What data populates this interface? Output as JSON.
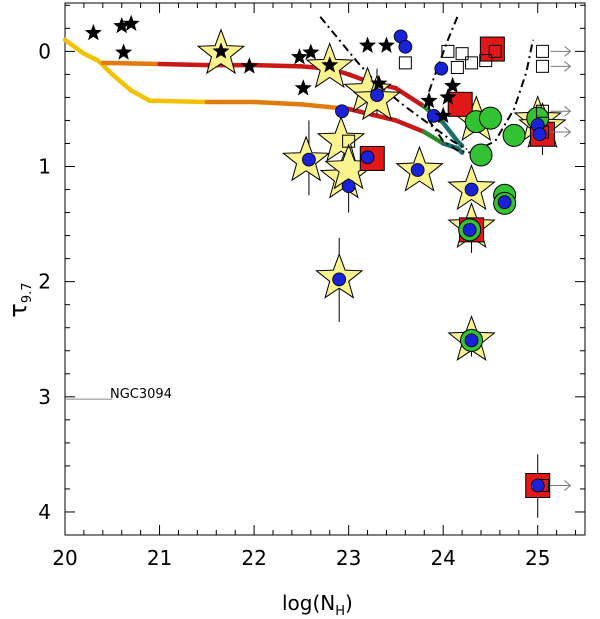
{
  "chart_data": {
    "type": "scatter",
    "title": "",
    "xlabel": "log(N",
    "xlabel_sub": "H",
    "xlabel_close": ")",
    "ylabel": "τ",
    "ylabel_sub": "9.7",
    "xlim": [
      20,
      25.5
    ],
    "ylim": [
      4.2,
      -0.42
    ],
    "xticks": [
      20,
      21,
      22,
      23,
      24,
      25
    ],
    "yticks": [
      0,
      1,
      2,
      3,
      4
    ],
    "grid": false,
    "annotation": {
      "text": "NGC3094",
      "x": 20.0,
      "y": 3.02
    },
    "colors": {
      "star_fill": "#fbf48e",
      "blue": "#1a22d8",
      "green": "#33c233",
      "red": "#e01818",
      "curve_yellow": "#f2c200",
      "curve_orange": "#e27a10",
      "curve_red": "#c81818",
      "curve_green": "#2e8a2e",
      "curve_teal": "#1a6e6e"
    },
    "black_stars": [
      [
        20.3,
        -0.16
      ],
      [
        20.6,
        -0.22
      ],
      [
        20.7,
        -0.24
      ],
      [
        20.62,
        0.01
      ],
      [
        21.65,
        0.0
      ],
      [
        21.95,
        0.13
      ],
      [
        22.48,
        0.05
      ],
      [
        22.52,
        0.32
      ],
      [
        22.6,
        0.01
      ],
      [
        22.8,
        0.12
      ],
      [
        23.2,
        -0.05
      ],
      [
        23.32,
        0.28
      ],
      [
        23.4,
        -0.05
      ],
      [
        23.85,
        0.43
      ],
      [
        24.05,
        0.4
      ],
      [
        24.0,
        0.56
      ],
      [
        24.1,
        0.3
      ]
    ],
    "yellow_stars": [
      [
        21.65,
        0.02
      ],
      [
        22.8,
        0.14
      ],
      [
        22.92,
        0.78
      ],
      [
        22.95,
        1.1
      ],
      [
        23.0,
        1.02
      ],
      [
        23.2,
        0.35
      ],
      [
        23.3,
        0.42
      ],
      [
        22.55,
        0.95
      ],
      [
        22.9,
        1.97
      ],
      [
        23.75,
        1.04
      ],
      [
        24.3,
        1.2
      ],
      [
        24.3,
        1.53
      ],
      [
        24.3,
        2.51
      ],
      [
        24.35,
        0.6
      ],
      [
        25.0,
        0.6
      ],
      [
        25.05,
        0.66
      ]
    ],
    "blue_circles": [
      [
        22.58,
        0.94
      ],
      [
        22.93,
        0.52
      ],
      [
        23.0,
        1.17
      ],
      [
        23.2,
        0.92
      ],
      [
        23.3,
        0.38
      ],
      [
        23.55,
        -0.13
      ],
      [
        23.6,
        -0.04
      ],
      [
        23.73,
        1.03
      ],
      [
        23.9,
        0.56
      ],
      [
        23.98,
        0.15
      ],
      [
        24.3,
        1.2
      ],
      [
        24.28,
        1.55
      ],
      [
        24.3,
        2.51
      ],
      [
        24.65,
        1.31
      ],
      [
        25.0,
        0.64
      ],
      [
        25.02,
        0.72
      ],
      [
        22.9,
        1.98
      ],
      [
        25.0,
        3.77
      ]
    ],
    "green_circles": [
      [
        24.35,
        0.61
      ],
      [
        24.5,
        0.58
      ],
      [
        24.4,
        0.9
      ],
      [
        24.65,
        1.25
      ],
      [
        24.65,
        1.32
      ],
      [
        24.75,
        0.73
      ],
      [
        25.0,
        0.58
      ],
      [
        24.28,
        1.55
      ],
      [
        24.3,
        2.51
      ]
    ],
    "red_squares": [
      [
        23.25,
        0.93
      ],
      [
        24.18,
        0.46
      ],
      [
        24.52,
        -0.02
      ],
      [
        25.05,
        0.72
      ],
      [
        24.3,
        1.55
      ],
      [
        25.0,
        3.77
      ]
    ],
    "open_squares": [
      [
        23.0,
        0.78
      ],
      [
        23.6,
        0.1
      ],
      [
        24.05,
        0.0
      ],
      [
        24.2,
        0.02
      ],
      [
        24.15,
        0.14
      ],
      [
        24.3,
        0.1
      ],
      [
        24.45,
        0.08
      ],
      [
        24.55,
        0.0
      ],
      [
        25.05,
        0.0
      ],
      [
        25.05,
        0.13
      ],
      [
        25.05,
        0.52
      ],
      [
        25.05,
        0.7
      ],
      [
        25.05,
        3.77
      ]
    ],
    "arrows": [
      [
        25.05,
        0.0
      ],
      [
        25.05,
        0.13
      ],
      [
        25.05,
        0.52
      ],
      [
        25.05,
        0.7
      ],
      [
        25.05,
        3.77
      ]
    ],
    "error_bars": [
      [
        22.58,
        0.6,
        1.25
      ],
      [
        22.9,
        1.62,
        2.35
      ],
      [
        23.0,
        0.95,
        1.4
      ],
      [
        24.3,
        1.36,
        1.75
      ],
      [
        24.3,
        2.38,
        2.65
      ],
      [
        25.0,
        3.5,
        4.05
      ],
      [
        23.3,
        0.15,
        0.55
      ],
      [
        25.05,
        0.45,
        0.9
      ]
    ],
    "curve_upper": [
      [
        20.4,
        0.1
      ],
      [
        21.0,
        0.11
      ],
      [
        21.5,
        0.12
      ],
      [
        22.0,
        0.12
      ],
      [
        22.5,
        0.13
      ],
      [
        22.8,
        0.15
      ],
      [
        23.0,
        0.2
      ],
      [
        23.2,
        0.26
      ],
      [
        23.5,
        0.32
      ],
      [
        23.8,
        0.48
      ],
      [
        24.0,
        0.62
      ],
      [
        24.15,
        0.78
      ],
      [
        24.2,
        0.82
      ]
    ],
    "curve_lower": [
      [
        20.0,
        -0.1
      ],
      [
        20.2,
        0.02
      ],
      [
        20.35,
        0.08
      ],
      [
        20.5,
        0.2
      ],
      [
        20.7,
        0.34
      ],
      [
        20.9,
        0.43
      ],
      [
        21.0,
        0.43
      ],
      [
        21.5,
        0.44
      ],
      [
        22.0,
        0.44
      ],
      [
        22.5,
        0.46
      ],
      [
        23.0,
        0.5
      ],
      [
        23.5,
        0.6
      ],
      [
        23.8,
        0.7
      ],
      [
        24.0,
        0.8
      ],
      [
        24.15,
        0.84
      ],
      [
        24.2,
        0.88
      ]
    ],
    "dashdot_left": [
      [
        22.7,
        -0.3
      ],
      [
        22.9,
        -0.1
      ],
      [
        23.1,
        0.1
      ],
      [
        23.3,
        0.28
      ],
      [
        23.6,
        0.48
      ],
      [
        23.9,
        0.66
      ],
      [
        24.1,
        0.78
      ],
      [
        24.25,
        0.85
      ]
    ],
    "dashdot_right": [
      [
        24.15,
        -0.3
      ],
      [
        24.05,
        -0.1
      ],
      [
        23.95,
        0.12
      ],
      [
        23.85,
        0.35
      ],
      [
        23.85,
        0.6
      ],
      [
        24.0,
        0.78
      ],
      [
        24.15,
        0.86
      ],
      [
        24.3,
        0.88
      ],
      [
        24.55,
        0.78
      ],
      [
        24.75,
        0.5
      ],
      [
        24.88,
        0.18
      ],
      [
        24.95,
        -0.1
      ]
    ]
  }
}
